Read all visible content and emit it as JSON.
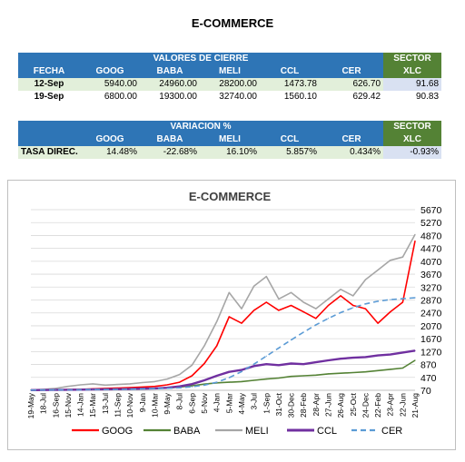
{
  "page": {
    "title": "E-COMMERCE"
  },
  "table1": {
    "group_header": "VALORES DE CIERRE",
    "sector_header": [
      "SECTOR",
      "XLC"
    ],
    "columns": [
      "FECHA",
      "GOOG",
      "BABA",
      "MELI",
      "CCL",
      "CER"
    ],
    "rows": [
      {
        "fecha": "12-Sep",
        "goog": "5940.00",
        "baba": "24960.00",
        "meli": "28200.00",
        "ccl": "1473.78",
        "cer": "626.70",
        "xlc": "91.68"
      },
      {
        "fecha": "19-Sep",
        "goog": "6800.00",
        "baba": "19300.00",
        "meli": "32740.00",
        "ccl": "1560.10",
        "cer": "629.42",
        "xlc": "90.83"
      }
    ]
  },
  "table2": {
    "group_header": "VARIACION %",
    "sector_header": [
      "SECTOR",
      "XLC"
    ],
    "columns": [
      "GOOG",
      "BABA",
      "MELI",
      "CCL",
      "CER"
    ],
    "row": {
      "label": "TASA DIREC.",
      "goog": "14.48%",
      "baba": "-22.68%",
      "meli": "16.10%",
      "ccl": "5.857%",
      "cer": "0.434%",
      "xlc": "-0.93%"
    }
  },
  "chart_data": {
    "type": "line",
    "title": "E-COMMERCE",
    "ylim": [
      70,
      5670
    ],
    "y_ticks": [
      70,
      470,
      870,
      1270,
      1670,
      2070,
      2470,
      2870,
      3270,
      3670,
      4070,
      4470,
      4870,
      5270,
      5670
    ],
    "grid": true,
    "legend_position": "bottom",
    "x_tick_labels": [
      "19-May",
      "18-Jul",
      "16-Sep",
      "15-Nov",
      "14-Jan",
      "15-Mar",
      "13-Jul",
      "11-Sep",
      "10-Nov",
      "9-Jan",
      "10-Mar",
      "9-May",
      "8-Jul",
      "6-Sep",
      "5-Nov",
      "4-Jan",
      "5-Mar",
      "4-May",
      "3-Jul",
      "1-Sep",
      "31-Oct",
      "30-Dec",
      "28-Feb",
      "28-Apr",
      "27-Jun",
      "26-Aug",
      "25-Oct",
      "24-Dec",
      "22-Feb",
      "23-Apr",
      "22-Jun",
      "21-Aug"
    ],
    "series": [
      {
        "name": "GOOG",
        "color": "#ff0000",
        "dash": "solid",
        "width": 1.6,
        "values": [
          75,
          80,
          85,
          95,
          100,
          115,
          130,
          140,
          155,
          170,
          190,
          240,
          320,
          520,
          900,
          1450,
          2350,
          2150,
          2550,
          2800,
          2550,
          2700,
          2500,
          2300,
          2700,
          3000,
          2700,
          2600,
          2150,
          2500,
          2800,
          4700
        ]
      },
      {
        "name": "BABA",
        "color": "#548235",
        "dash": "solid",
        "width": 1.6,
        "values": [
          75,
          78,
          80,
          85,
          90,
          95,
          100,
          105,
          110,
          115,
          125,
          140,
          170,
          210,
          260,
          300,
          320,
          340,
          380,
          420,
          450,
          500,
          520,
          540,
          580,
          600,
          620,
          640,
          680,
          720,
          760,
          1000
        ]
      },
      {
        "name": "MELI",
        "color": "#a6a6a6",
        "dash": "solid",
        "width": 1.6,
        "values": [
          80,
          100,
          130,
          190,
          240,
          270,
          230,
          250,
          270,
          310,
          340,
          420,
          560,
          850,
          1450,
          2200,
          3100,
          2600,
          3300,
          3600,
          2900,
          3100,
          2800,
          2600,
          2900,
          3200,
          3000,
          3500,
          3800,
          4100,
          4200,
          4900
        ]
      },
      {
        "name": "CCL",
        "color": "#7030a0",
        "dash": "solid",
        "width": 2.4,
        "values": [
          75,
          78,
          82,
          86,
          90,
          95,
          100,
          105,
          110,
          120,
          130,
          150,
          190,
          260,
          380,
          520,
          640,
          700,
          820,
          880,
          850,
          900,
          880,
          940,
          1000,
          1050,
          1080,
          1100,
          1150,
          1180,
          1240,
          1300
        ]
      },
      {
        "name": "CER",
        "color": "#5b9bd5",
        "dash": "dashed",
        "width": 1.6,
        "values": [
          75,
          78,
          80,
          84,
          88,
          92,
          96,
          100,
          105,
          112,
          120,
          132,
          150,
          180,
          230,
          320,
          460,
          650,
          880,
          1130,
          1380,
          1630,
          1870,
          2100,
          2300,
          2480,
          2630,
          2750,
          2830,
          2880,
          2910,
          2940
        ]
      }
    ]
  }
}
